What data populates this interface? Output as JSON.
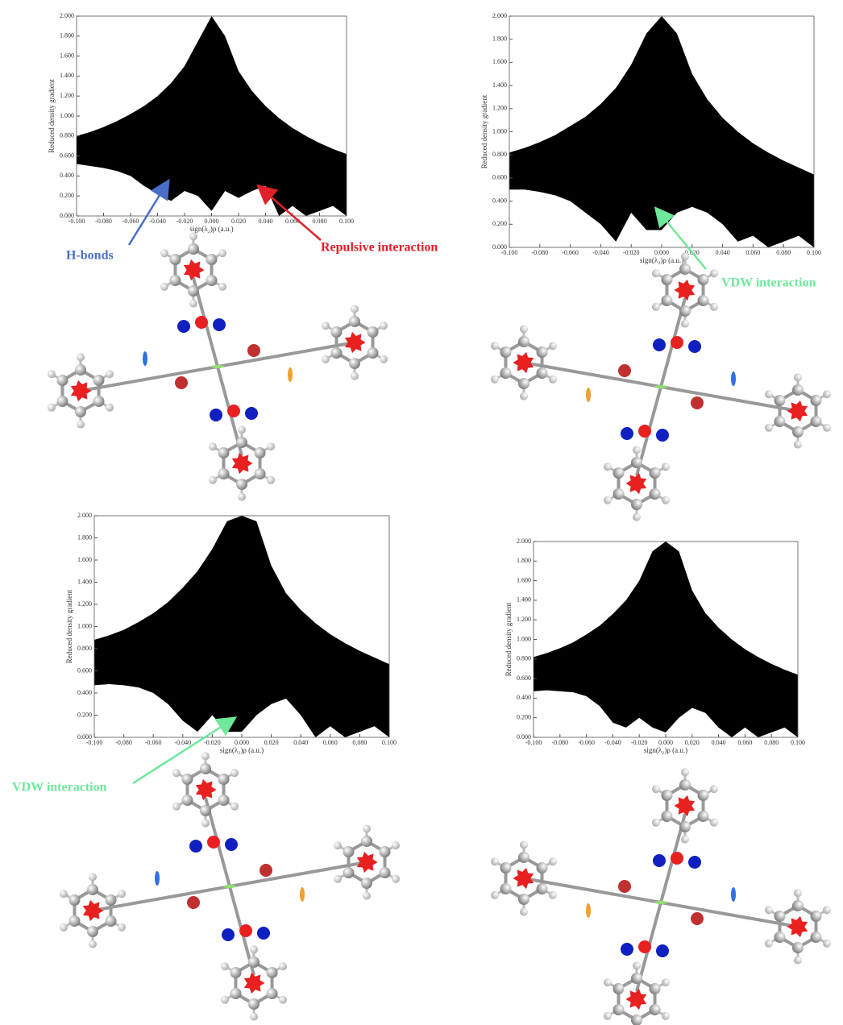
{
  "chart_data": [
    {
      "type": "range_area",
      "color": "#000000",
      "x_label": "sign(λ₂)ρ (a.u.)",
      "y_label": "Reduced density gradient",
      "x": [
        -0.1,
        -0.09,
        -0.08,
        -0.07,
        -0.06,
        -0.05,
        -0.04,
        -0.03,
        -0.02,
        -0.01,
        0,
        0.01,
        0.02,
        0.03,
        0.04,
        0.05,
        0.06,
        0.07,
        0.08,
        0.09,
        0.1
      ],
      "high": [
        0.8,
        0.84,
        0.89,
        0.95,
        1.02,
        1.1,
        1.2,
        1.33,
        1.5,
        1.75,
        2.0,
        1.8,
        1.45,
        1.25,
        1.1,
        0.98,
        0.88,
        0.8,
        0.73,
        0.67,
        0.62
      ],
      "low": [
        0.52,
        0.5,
        0.48,
        0.45,
        0.4,
        0.3,
        0.22,
        0.15,
        0.25,
        0.2,
        0.05,
        0.25,
        0.18,
        0.25,
        0.3,
        0.0,
        0.1,
        0.0,
        0.05,
        0.1,
        0.0
      ],
      "xlim": [
        -0.1,
        0.1
      ],
      "ylim": [
        0,
        2
      ],
      "xticks": [
        {
          "value": -0.1,
          "label": "-0.100"
        },
        {
          "value": -0.08,
          "label": "-0.080"
        },
        {
          "value": -0.06,
          "label": "-0.060"
        },
        {
          "value": -0.04,
          "label": "-0.040"
        },
        {
          "value": -0.02,
          "label": "-0.020"
        },
        {
          "value": 0,
          "label": "0.000"
        },
        {
          "value": 0.02,
          "label": "0.020"
        },
        {
          "value": 0.04,
          "label": "0.040"
        },
        {
          "value": 0.06,
          "label": "0.060"
        },
        {
          "value": 0.08,
          "label": "0.080"
        },
        {
          "value": 0.1,
          "label": "0.100"
        }
      ],
      "yticks": [
        {
          "value": 0,
          "label": "0.000"
        },
        {
          "value": 0.2,
          "label": "0.200"
        },
        {
          "value": 0.4,
          "label": "0.400"
        },
        {
          "value": 0.6,
          "label": "0.600"
        },
        {
          "value": 0.8,
          "label": "0.800"
        },
        {
          "value": 1,
          "label": "1.000"
        },
        {
          "value": 1.2,
          "label": "1.200"
        },
        {
          "value": 1.4,
          "label": "1.400"
        },
        {
          "value": 1.6,
          "label": "1.600"
        },
        {
          "value": 1.8,
          "label": "1.800"
        },
        {
          "value": 2,
          "label": "2.000"
        }
      ],
      "annotations": [
        {
          "text": "H-bonds",
          "color": "#4a6fc8"
        },
        {
          "text": "Repulsive interaction",
          "color": "#e0202a"
        }
      ]
    },
    {
      "type": "range_area",
      "color": "#000000",
      "x_label": "sign(λ₂)ρ (a.u.)",
      "y_label": "Reduced density gradient",
      "x": [
        -0.1,
        -0.09,
        -0.08,
        -0.07,
        -0.06,
        -0.05,
        -0.04,
        -0.03,
        -0.02,
        -0.01,
        0,
        0.01,
        0.02,
        0.03,
        0.04,
        0.05,
        0.06,
        0.07,
        0.08,
        0.09,
        0.1
      ],
      "high": [
        0.82,
        0.86,
        0.91,
        0.97,
        1.05,
        1.13,
        1.24,
        1.38,
        1.58,
        1.85,
        2.0,
        1.85,
        1.5,
        1.28,
        1.12,
        1.0,
        0.9,
        0.82,
        0.75,
        0.69,
        0.63
      ],
      "low": [
        0.5,
        0.5,
        0.48,
        0.45,
        0.4,
        0.3,
        0.2,
        0.05,
        0.3,
        0.15,
        0.15,
        0.3,
        0.35,
        0.3,
        0.2,
        0.05,
        0.1,
        0.0,
        0.05,
        0.1,
        0.0
      ],
      "xlim": [
        -0.1,
        0.1
      ],
      "ylim": [
        0,
        2
      ],
      "xticks": [
        {
          "value": -0.1,
          "label": "-0.100"
        },
        {
          "value": -0.08,
          "label": "-0.080"
        },
        {
          "value": -0.06,
          "label": "-0.060"
        },
        {
          "value": -0.04,
          "label": "-0.040"
        },
        {
          "value": -0.02,
          "label": "-0.020"
        },
        {
          "value": 0,
          "label": "0.000"
        },
        {
          "value": 0.02,
          "label": "0.020"
        },
        {
          "value": 0.04,
          "label": "0.040"
        },
        {
          "value": 0.06,
          "label": "0.060"
        },
        {
          "value": 0.08,
          "label": "0.080"
        },
        {
          "value": 0.1,
          "label": "0.100"
        }
      ],
      "yticks": [
        {
          "value": 0,
          "label": "0.000"
        },
        {
          "value": 0.2,
          "label": "0.200"
        },
        {
          "value": 0.4,
          "label": "0.400"
        },
        {
          "value": 0.6,
          "label": "0.600"
        },
        {
          "value": 0.8,
          "label": "0.800"
        },
        {
          "value": 1,
          "label": "1.000"
        },
        {
          "value": 1.2,
          "label": "1.200"
        },
        {
          "value": 1.4,
          "label": "1.400"
        },
        {
          "value": 1.6,
          "label": "1.600"
        },
        {
          "value": 1.8,
          "label": "1.800"
        },
        {
          "value": 2,
          "label": "2.000"
        }
      ],
      "annotations": [
        {
          "text": "VDW interaction",
          "color": "#6ee89a"
        }
      ]
    },
    {
      "type": "range_area",
      "color": "#000000",
      "x_label": "sign(λ₂)ρ (a.u.)",
      "y_label": "Reduced density gradient",
      "x": [
        -0.1,
        -0.09,
        -0.08,
        -0.07,
        -0.06,
        -0.05,
        -0.04,
        -0.03,
        -0.02,
        -0.01,
        0,
        0.01,
        0.02,
        0.03,
        0.04,
        0.05,
        0.06,
        0.07,
        0.08,
        0.09,
        0.1
      ],
      "high": [
        0.88,
        0.92,
        0.97,
        1.04,
        1.12,
        1.22,
        1.35,
        1.5,
        1.7,
        1.95,
        2.0,
        1.95,
        1.55,
        1.3,
        1.15,
        1.03,
        0.93,
        0.85,
        0.78,
        0.72,
        0.66
      ],
      "low": [
        0.47,
        0.48,
        0.47,
        0.45,
        0.4,
        0.3,
        0.15,
        0.05,
        0.2,
        0.05,
        0.05,
        0.2,
        0.3,
        0.35,
        0.2,
        0.0,
        0.1,
        0.0,
        0.05,
        0.1,
        0.0
      ],
      "xlim": [
        -0.1,
        0.1
      ],
      "ylim": [
        0,
        2
      ],
      "xticks": [
        {
          "value": -0.1,
          "label": "-0.100"
        },
        {
          "value": -0.08,
          "label": "-0.080"
        },
        {
          "value": -0.06,
          "label": "-0.060"
        },
        {
          "value": -0.04,
          "label": "-0.040"
        },
        {
          "value": -0.02,
          "label": "-0.020"
        },
        {
          "value": 0,
          "label": "0.000"
        },
        {
          "value": 0.02,
          "label": "0.020"
        },
        {
          "value": 0.04,
          "label": "0.040"
        },
        {
          "value": 0.06,
          "label": "0.060"
        },
        {
          "value": 0.08,
          "label": "0.080"
        },
        {
          "value": 0.1,
          "label": "0.100"
        }
      ],
      "yticks": [
        {
          "value": 0,
          "label": "0.000"
        },
        {
          "value": 0.2,
          "label": "0.200"
        },
        {
          "value": 0.4,
          "label": "0.400"
        },
        {
          "value": 0.6,
          "label": "0.600"
        },
        {
          "value": 0.8,
          "label": "0.800"
        },
        {
          "value": 1,
          "label": "1.000"
        },
        {
          "value": 1.2,
          "label": "1.200"
        },
        {
          "value": 1.4,
          "label": "1.400"
        },
        {
          "value": 1.6,
          "label": "1.600"
        },
        {
          "value": 1.8,
          "label": "1.800"
        },
        {
          "value": 2,
          "label": "2.000"
        }
      ],
      "annotations": [
        {
          "text": "VDW interaction",
          "color": "#6ee89a"
        }
      ]
    },
    {
      "type": "range_area",
      "color": "#000000",
      "x_label": "sign(λ₂)ρ (a.u.)",
      "y_label": "Reduced density gradient",
      "x": [
        -0.1,
        -0.09,
        -0.08,
        -0.07,
        -0.06,
        -0.05,
        -0.04,
        -0.03,
        -0.02,
        -0.01,
        0,
        0.01,
        0.02,
        0.03,
        0.04,
        0.05,
        0.06,
        0.07,
        0.08,
        0.09,
        0.1
      ],
      "high": [
        0.82,
        0.86,
        0.91,
        0.97,
        1.05,
        1.14,
        1.26,
        1.4,
        1.6,
        1.9,
        2.0,
        1.9,
        1.5,
        1.27,
        1.12,
        1.0,
        0.9,
        0.82,
        0.75,
        0.69,
        0.64
      ],
      "low": [
        0.47,
        0.48,
        0.47,
        0.46,
        0.42,
        0.32,
        0.15,
        0.1,
        0.2,
        0.1,
        0.05,
        0.2,
        0.3,
        0.25,
        0.1,
        0.0,
        0.1,
        0.0,
        0.05,
        0.1,
        0.0
      ],
      "xlim": [
        -0.1,
        0.1
      ],
      "ylim": [
        0,
        2
      ],
      "xticks": [
        {
          "value": -0.1,
          "label": "-0.100"
        },
        {
          "value": -0.08,
          "label": "-0.080"
        },
        {
          "value": -0.06,
          "label": "-0.060"
        },
        {
          "value": -0.04,
          "label": "-0.040"
        },
        {
          "value": -0.02,
          "label": "-0.020"
        },
        {
          "value": 0,
          "label": "0.000"
        },
        {
          "value": 0.02,
          "label": "0.020"
        },
        {
          "value": 0.04,
          "label": "0.040"
        },
        {
          "value": 0.06,
          "label": "0.060"
        },
        {
          "value": 0.08,
          "label": "0.080"
        },
        {
          "value": 0.1,
          "label": "0.100"
        }
      ],
      "yticks": [
        {
          "value": 0,
          "label": "0.000"
        },
        {
          "value": 0.2,
          "label": "0.200"
        },
        {
          "value": 0.4,
          "label": "0.400"
        },
        {
          "value": 0.6,
          "label": "0.600"
        },
        {
          "value": 0.8,
          "label": "0.800"
        },
        {
          "value": 1,
          "label": "1.000"
        },
        {
          "value": 1.2,
          "label": "1.200"
        },
        {
          "value": 1.4,
          "label": "1.400"
        },
        {
          "value": 1.6,
          "label": "1.600"
        },
        {
          "value": 1.8,
          "label": "1.800"
        },
        {
          "value": 2,
          "label": "2.000"
        }
      ],
      "annotations": []
    }
  ]
}
